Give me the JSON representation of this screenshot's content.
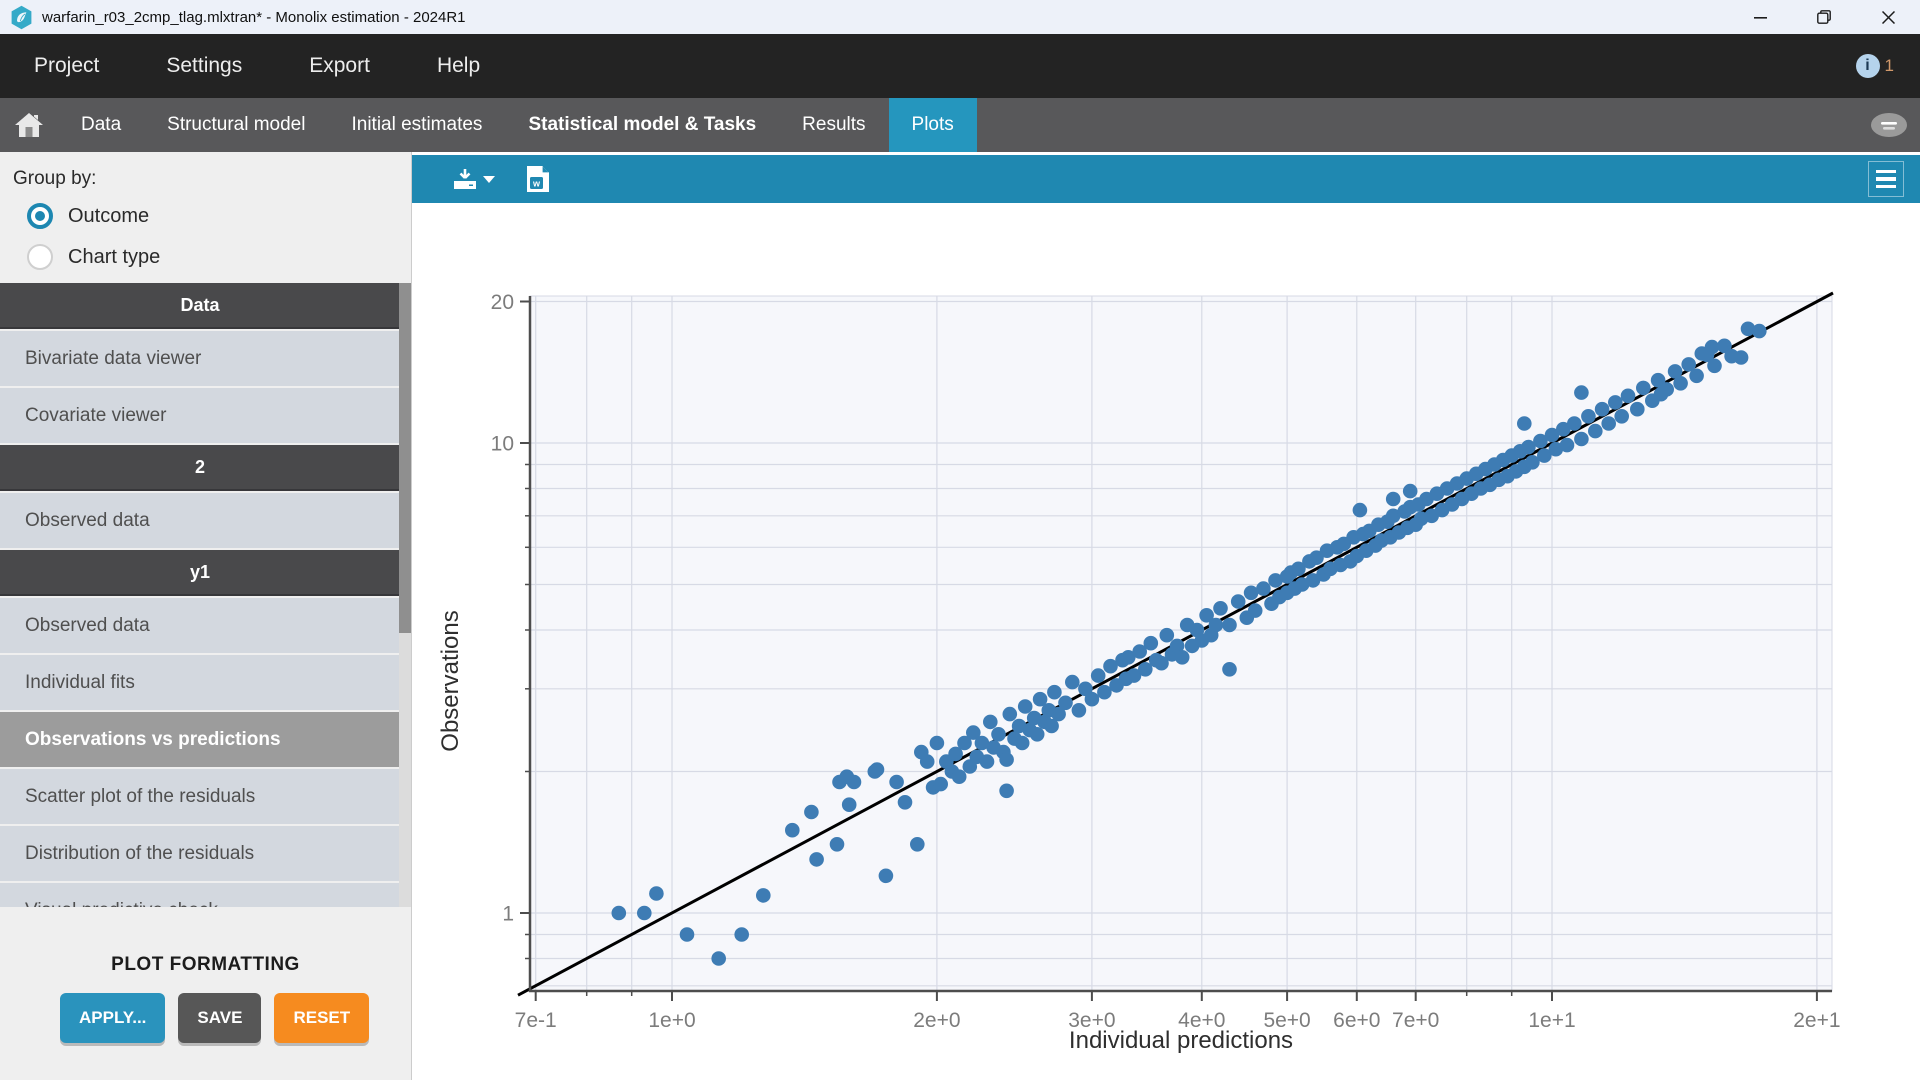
{
  "window": {
    "title": "warfarin_r03_2cmp_tlag.mlxtran* - Monolix estimation - 2024R1"
  },
  "menubar": {
    "items": [
      "Project",
      "Settings",
      "Export",
      "Help"
    ],
    "info_count": "1"
  },
  "tabbar": {
    "tabs": [
      {
        "label": "Data",
        "active": false,
        "emphasis": false
      },
      {
        "label": "Structural model",
        "active": false,
        "emphasis": false
      },
      {
        "label": "Initial estimates",
        "active": false,
        "emphasis": false
      },
      {
        "label": "Statistical model & Tasks",
        "active": false,
        "emphasis": true
      },
      {
        "label": "Results",
        "active": false,
        "emphasis": false
      },
      {
        "label": "Plots",
        "active": true,
        "emphasis": false
      }
    ]
  },
  "sidebar": {
    "group_by": {
      "label": "Group by:",
      "options": [
        {
          "label": "Outcome",
          "selected": true
        },
        {
          "label": "Chart type",
          "selected": false
        }
      ]
    },
    "sections": [
      {
        "header": "Data",
        "items": [
          {
            "label": "Bivariate data viewer",
            "selected": false
          },
          {
            "label": "Covariate viewer",
            "selected": false
          }
        ]
      },
      {
        "header": "2",
        "items": [
          {
            "label": "Observed data",
            "selected": false
          }
        ]
      },
      {
        "header": "y1",
        "items": [
          {
            "label": "Observed data",
            "selected": false
          },
          {
            "label": "Individual fits",
            "selected": false
          },
          {
            "label": "Observations vs predictions",
            "selected": true
          },
          {
            "label": "Scatter plot of the residuals",
            "selected": false
          },
          {
            "label": "Distribution of the residuals",
            "selected": false
          },
          {
            "label": "Visual predictive check",
            "selected": false
          }
        ]
      }
    ],
    "plot_formatting": {
      "title": "PLOT FORMATTING",
      "buttons": [
        {
          "label": "APPLY...",
          "color": "#2a93bd"
        },
        {
          "label": "SAVE",
          "color": "#575757"
        },
        {
          "label": "RESET",
          "color": "#f68b1f"
        }
      ]
    }
  },
  "chart_data": {
    "type": "scatter",
    "title": "",
    "xlabel": "Individual predictions",
    "ylabel": "Observations",
    "x_scale": "log",
    "y_scale": "log",
    "xlim": [
      0.69,
      20.8
    ],
    "ylim": [
      0.68,
      20.6
    ],
    "grid": true,
    "identity_line": true,
    "point_color": "#3e7cb4",
    "line_color": "#000000",
    "x_ticks": [
      {
        "v": 0.7,
        "label": "7e-1"
      },
      {
        "v": 1,
        "label": "1e+0"
      },
      {
        "v": 2,
        "label": "2e+0"
      },
      {
        "v": 3,
        "label": "3e+0"
      },
      {
        "v": 4,
        "label": "4e+0"
      },
      {
        "v": 5,
        "label": "5e+0"
      },
      {
        "v": 6,
        "label": "6e+0"
      },
      {
        "v": 7,
        "label": "7e+0"
      },
      {
        "v": 10,
        "label": "1e+1"
      },
      {
        "v": 20,
        "label": "2e+1"
      }
    ],
    "y_ticks": [
      {
        "v": 1,
        "label": "1"
      },
      {
        "v": 10,
        "label": "10"
      },
      {
        "v": 20,
        "label": "20"
      }
    ],
    "x_minor_ticks": [
      0.8,
      0.9,
      8,
      9
    ],
    "y_minor_ticks": [
      0.8,
      0.9,
      2,
      3,
      4,
      5,
      6,
      7,
      8,
      9
    ],
    "grid_values": [
      0.7,
      0.8,
      0.9,
      1,
      2,
      3,
      4,
      5,
      6,
      7,
      8,
      9,
      10,
      20
    ],
    "points": [
      [
        0.87,
        1.0
      ],
      [
        0.93,
        1.0
      ],
      [
        0.96,
        1.1
      ],
      [
        1.04,
        0.9
      ],
      [
        1.13,
        0.8
      ],
      [
        1.2,
        0.9
      ],
      [
        1.27,
        1.09
      ],
      [
        1.37,
        1.5
      ],
      [
        1.44,
        1.64
      ],
      [
        1.46,
        1.3
      ],
      [
        1.54,
        1.4
      ],
      [
        1.75,
        1.2
      ],
      [
        1.9,
        1.4
      ],
      [
        1.55,
        1.9
      ],
      [
        1.58,
        1.95
      ],
      [
        1.61,
        1.9
      ],
      [
        1.59,
        1.7
      ],
      [
        1.7,
        2.0
      ],
      [
        1.8,
        1.9
      ],
      [
        1.71,
        2.02
      ],
      [
        1.84,
        1.72
      ],
      [
        1.95,
        2.1
      ],
      [
        1.98,
        1.85
      ],
      [
        2.0,
        2.3
      ],
      [
        1.92,
        2.2
      ],
      [
        2.02,
        1.88
      ],
      [
        2.05,
        2.1
      ],
      [
        2.08,
        2.0
      ],
      [
        2.1,
        2.18
      ],
      [
        2.12,
        1.95
      ],
      [
        2.15,
        2.3
      ],
      [
        2.18,
        2.05
      ],
      [
        2.2,
        2.42
      ],
      [
        2.22,
        2.15
      ],
      [
        2.25,
        2.3
      ],
      [
        2.28,
        2.1
      ],
      [
        2.3,
        2.55
      ],
      [
        2.32,
        2.25
      ],
      [
        2.35,
        2.4
      ],
      [
        2.38,
        2.2
      ],
      [
        2.4,
        2.12
      ],
      [
        2.4,
        1.82
      ],
      [
        2.42,
        2.65
      ],
      [
        2.45,
        2.35
      ],
      [
        2.48,
        2.5
      ],
      [
        2.5,
        2.3
      ],
      [
        2.52,
        2.75
      ],
      [
        2.55,
        2.45
      ],
      [
        2.58,
        2.6
      ],
      [
        2.6,
        2.4
      ],
      [
        2.62,
        2.85
      ],
      [
        2.65,
        2.55
      ],
      [
        2.68,
        2.7
      ],
      [
        2.7,
        2.5
      ],
      [
        2.72,
        2.95
      ],
      [
        2.75,
        2.65
      ],
      [
        2.8,
        2.8
      ],
      [
        2.85,
        3.1
      ],
      [
        2.9,
        2.7
      ],
      [
        2.95,
        3.0
      ],
      [
        3.0,
        2.85
      ],
      [
        3.05,
        3.2
      ],
      [
        3.1,
        2.95
      ],
      [
        3.15,
        3.35
      ],
      [
        3.2,
        3.05
      ],
      [
        3.25,
        3.45
      ],
      [
        3.28,
        3.15
      ],
      [
        3.3,
        3.5
      ],
      [
        3.35,
        3.2
      ],
      [
        3.4,
        3.6
      ],
      [
        3.45,
        3.3
      ],
      [
        3.5,
        3.75
      ],
      [
        3.55,
        3.45
      ],
      [
        3.6,
        3.4
      ],
      [
        3.65,
        3.9
      ],
      [
        3.7,
        3.55
      ],
      [
        3.75,
        3.7
      ],
      [
        3.8,
        3.5
      ],
      [
        3.85,
        4.1
      ],
      [
        3.9,
        3.7
      ],
      [
        3.95,
        4.0
      ],
      [
        4.0,
        3.8
      ],
      [
        4.05,
        4.3
      ],
      [
        4.1,
        3.9
      ],
      [
        4.15,
        4.1
      ],
      [
        4.2,
        4.45
      ],
      [
        4.3,
        4.1
      ],
      [
        4.3,
        3.3
      ],
      [
        4.4,
        4.6
      ],
      [
        4.5,
        4.25
      ],
      [
        4.55,
        4.8
      ],
      [
        4.6,
        4.4
      ],
      [
        4.7,
        4.9
      ],
      [
        4.8,
        4.55
      ],
      [
        4.85,
        5.1
      ],
      [
        4.9,
        4.7
      ],
      [
        5.0,
        5.2
      ],
      [
        5.0,
        4.8
      ],
      [
        5.05,
        5.3
      ],
      [
        5.1,
        4.9
      ],
      [
        5.15,
        5.4
      ],
      [
        5.2,
        5.0
      ],
      [
        5.3,
        5.6
      ],
      [
        5.35,
        5.1
      ],
      [
        5.4,
        5.7
      ],
      [
        5.5,
        5.25
      ],
      [
        5.55,
        5.9
      ],
      [
        5.6,
        5.4
      ],
      [
        5.7,
        6.0
      ],
      [
        5.75,
        5.5
      ],
      [
        5.8,
        6.1
      ],
      [
        5.9,
        5.6
      ],
      [
        5.95,
        6.3
      ],
      [
        6.0,
        5.75
      ],
      [
        6.05,
        7.2
      ],
      [
        6.1,
        6.4
      ],
      [
        6.15,
        5.9
      ],
      [
        6.2,
        6.5
      ],
      [
        6.3,
        6.05
      ],
      [
        6.35,
        6.7
      ],
      [
        6.4,
        6.2
      ],
      [
        6.5,
        6.8
      ],
      [
        6.55,
        6.3
      ],
      [
        6.6,
        7.6
      ],
      [
        6.6,
        7.0
      ],
      [
        6.7,
        6.45
      ],
      [
        6.8,
        7.15
      ],
      [
        6.85,
        6.6
      ],
      [
        6.9,
        7.9
      ],
      [
        6.9,
        7.3
      ],
      [
        7.0,
        6.7
      ],
      [
        7.05,
        7.4
      ],
      [
        7.1,
        6.9
      ],
      [
        7.2,
        7.6
      ],
      [
        7.3,
        7.0
      ],
      [
        7.4,
        7.8
      ],
      [
        7.5,
        7.2
      ],
      [
        7.6,
        8.0
      ],
      [
        7.7,
        7.4
      ],
      [
        7.8,
        8.2
      ],
      [
        7.9,
        7.6
      ],
      [
        8.0,
        8.4
      ],
      [
        8.1,
        7.8
      ],
      [
        8.2,
        8.6
      ],
      [
        8.3,
        8.0
      ],
      [
        8.4,
        8.8
      ],
      [
        8.5,
        8.15
      ],
      [
        8.6,
        9.0
      ],
      [
        8.7,
        8.35
      ],
      [
        8.8,
        9.2
      ],
      [
        8.9,
        8.5
      ],
      [
        9.0,
        9.4
      ],
      [
        9.1,
        8.7
      ],
      [
        9.2,
        9.6
      ],
      [
        9.3,
        11.0
      ],
      [
        9.3,
        8.9
      ],
      [
        9.4,
        9.8
      ],
      [
        9.5,
        9.1
      ],
      [
        9.7,
        10.1
      ],
      [
        9.8,
        9.4
      ],
      [
        10.0,
        10.4
      ],
      [
        10.1,
        9.7
      ],
      [
        10.3,
        10.7
      ],
      [
        10.4,
        9.9
      ],
      [
        10.6,
        11.0
      ],
      [
        10.8,
        12.8
      ],
      [
        10.8,
        10.2
      ],
      [
        11.0,
        11.4
      ],
      [
        11.2,
        10.6
      ],
      [
        11.4,
        11.8
      ],
      [
        11.6,
        11.0
      ],
      [
        11.8,
        12.2
      ],
      [
        12.0,
        11.4
      ],
      [
        12.2,
        12.6
      ],
      [
        12.5,
        11.8
      ],
      [
        12.7,
        13.1
      ],
      [
        13.0,
        12.3
      ],
      [
        13.2,
        13.6
      ],
      [
        13.3,
        12.7
      ],
      [
        13.5,
        13.0
      ],
      [
        13.8,
        14.2
      ],
      [
        14.0,
        13.4
      ],
      [
        14.3,
        14.7
      ],
      [
        14.6,
        13.9
      ],
      [
        14.8,
        15.5
      ],
      [
        15.0,
        15.4
      ],
      [
        15.2,
        16.0
      ],
      [
        15.3,
        14.6
      ],
      [
        15.7,
        16.1
      ],
      [
        16.0,
        15.3
      ],
      [
        16.4,
        15.2
      ],
      [
        16.7,
        17.5
      ],
      [
        17.2,
        17.3
      ]
    ]
  }
}
